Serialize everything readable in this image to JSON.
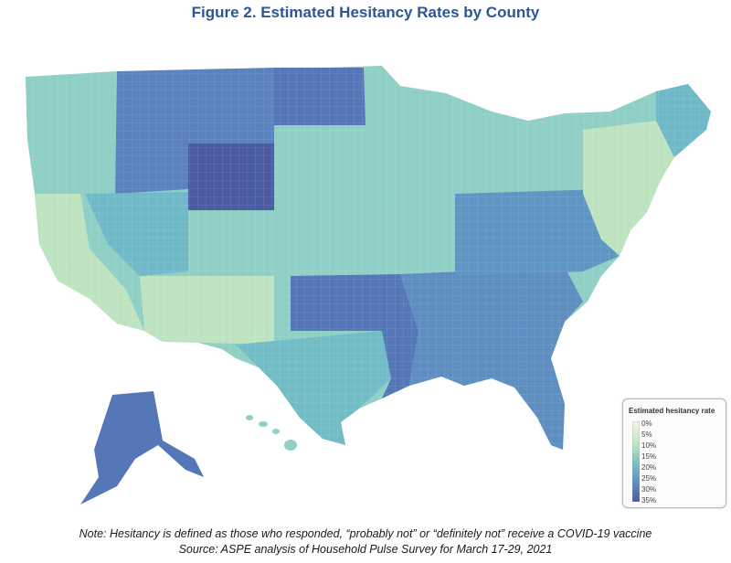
{
  "title": "Figure 2. Estimated Hesitancy Rates by County",
  "legend": {
    "title": "Estimated hesitancy rate",
    "labels": [
      "0%",
      "5%",
      "10%",
      "15%",
      "20%",
      "25%",
      "30%",
      "35%"
    ],
    "colors": [
      "#f4f8e6",
      "#dcefc8",
      "#bde3c0",
      "#8fd0c4",
      "#6fb9c8",
      "#5e95c2",
      "#5577b8",
      "#4a5aa3"
    ]
  },
  "map": {
    "regions": [
      {
        "name": "pacific-northwest",
        "level": "15%"
      },
      {
        "name": "montana-idaho",
        "level": "30%"
      },
      {
        "name": "wyoming",
        "level": "35%"
      },
      {
        "name": "north-dakota",
        "level": "30%"
      },
      {
        "name": "great-plains",
        "level": "15%"
      },
      {
        "name": "california",
        "level": "10%"
      },
      {
        "name": "nevada-utah",
        "level": "20%"
      },
      {
        "name": "southwest",
        "level": "10%"
      },
      {
        "name": "texas",
        "level": "20%"
      },
      {
        "name": "south-central",
        "level": "30%"
      },
      {
        "name": "southeast",
        "level": "25%"
      },
      {
        "name": "midwest",
        "level": "15%"
      },
      {
        "name": "ohio-valley",
        "level": "25%"
      },
      {
        "name": "northeast",
        "level": "10%"
      },
      {
        "name": "maine",
        "level": "20%"
      },
      {
        "name": "alaska",
        "level": "30%"
      },
      {
        "name": "hawaii",
        "level": "15%"
      }
    ]
  },
  "note": {
    "line1": "Note: Hesitancy is defined as those who responded, “probably not” or “definitely not” receive a COVID-19 vaccine",
    "line2": "Source: ASPE analysis of Household Pulse Survey for March 17-29, 2021"
  }
}
